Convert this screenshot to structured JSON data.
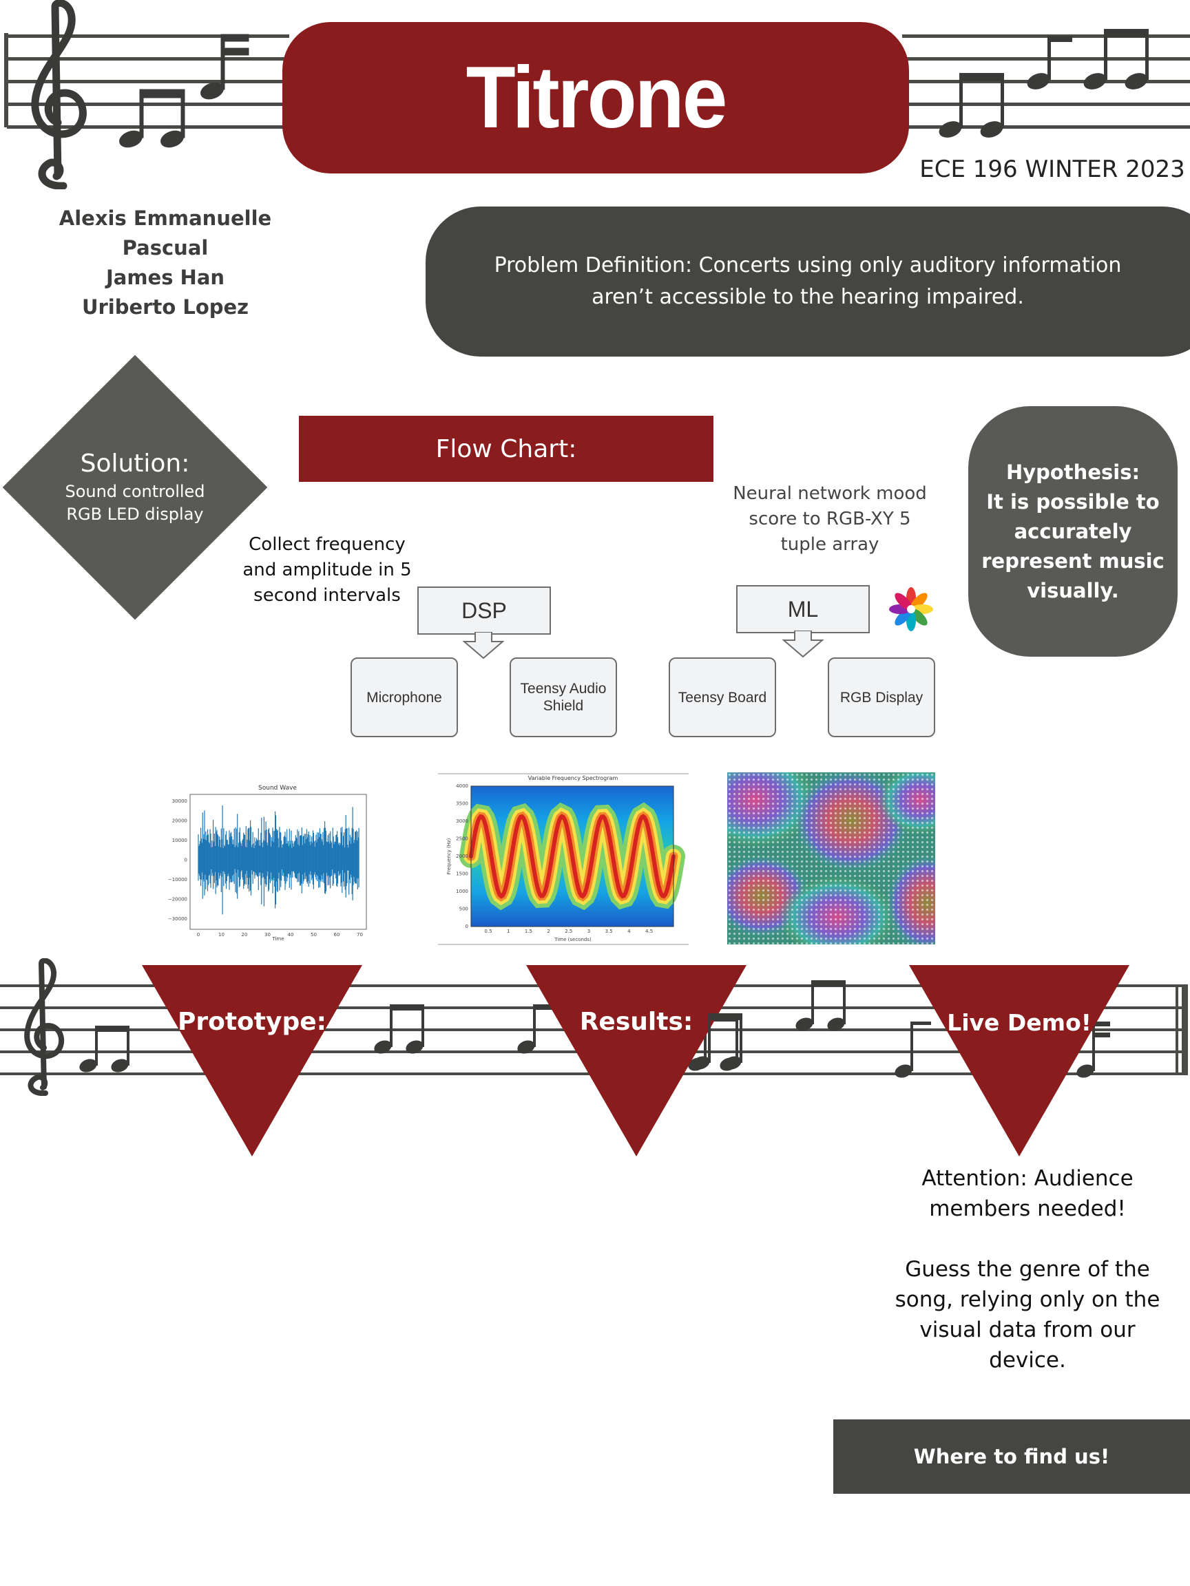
{
  "header": {
    "title": "Titrone",
    "course": "ECE 196 WINTER 2023",
    "authors": [
      "Alexis Emmanuelle Pascual",
      "James Han",
      "Uriberto Lopez"
    ]
  },
  "problem": {
    "text": "Problem Definition: Concerts using only auditory information aren’t accessible to the hearing impaired."
  },
  "solution": {
    "title": "Solution:",
    "subtitle_lines": [
      "Sound controlled",
      "RGB LED display"
    ]
  },
  "flowchart": {
    "label": "Flow Chart:",
    "dsp_caption_lines": [
      "Collect frequency",
      "and amplitude in 5",
      "second intervals"
    ],
    "ml_caption_lines": [
      "Neural network mood",
      "score to RGB-XY 5",
      "tuple array"
    ],
    "dsp_callout": "DSP",
    "ml_callout": "ML",
    "stages": [
      "Microphone",
      "Teensy Audio Shield",
      "Teensy Board",
      "RGB Display"
    ]
  },
  "hypothesis": {
    "lines": [
      "Hypothesis:",
      "It is possible to",
      "accurately",
      "represent music",
      "visually."
    ]
  },
  "charts": {
    "sound_wave": {
      "title": "Sound Wave",
      "xlabel": "Time",
      "yticks": [
        "30000",
        "20000",
        "10000",
        "0",
        "−10000",
        "−20000",
        "−30000"
      ],
      "xticks": [
        "0",
        "10",
        "20",
        "30",
        "40",
        "50",
        "60",
        "70"
      ]
    },
    "spectrogram": {
      "title": "Variable Frequency Spectrogram",
      "xlabel": "Time (seconds)",
      "ylabel": "Frequency (Hz)",
      "yticks": [
        "4000",
        "3500",
        "3000",
        "2500",
        "2000",
        "1500",
        "1000",
        "500",
        "0"
      ],
      "xticks": [
        "0.5",
        "1",
        "1.5",
        "2",
        "2.5",
        "3",
        "3.5",
        "4",
        "4.5"
      ]
    }
  },
  "sections": {
    "prototype": "Prototype:",
    "results": "Results:",
    "live_demo": "Live Demo!"
  },
  "attention": {
    "lines": [
      "Attention: Audience",
      "members  needed!",
      "",
      "Guess the genre of the",
      "song, relying only on the",
      "visual data from our",
      "device."
    ]
  },
  "footer": {
    "where": "Where to find us!"
  },
  "colors": {
    "maroon": "#8a1c1e",
    "dark_gray": "#454542",
    "mid_gray": "#595956"
  }
}
